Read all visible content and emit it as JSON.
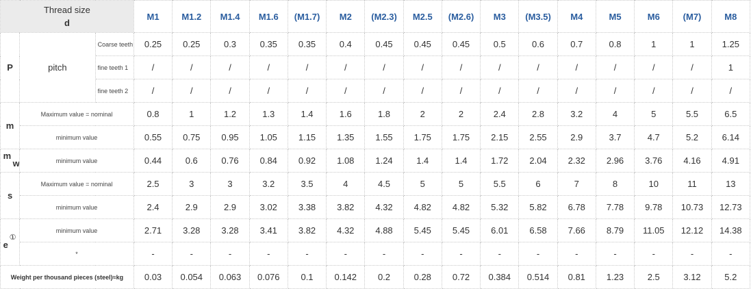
{
  "header": {
    "label_line1": "Thread size",
    "label_line2": "d",
    "sizes": [
      "M1",
      "M1.2",
      "M1.4",
      "M1.6",
      "(M1.7)",
      "M2",
      "(M2.3)",
      "M2.5",
      "(M2.6)",
      "M3",
      "(M3.5)",
      "M4",
      "M5",
      "M6",
      "(M7)",
      "M8"
    ]
  },
  "groups": {
    "P": {
      "symbol": "P",
      "name": "pitch"
    },
    "m": {
      "symbol": "m"
    },
    "mw": {
      "symbol": "m",
      "subscript": "w"
    },
    "s": {
      "symbol": "s"
    },
    "e": {
      "symbol": "e",
      "marker": "①"
    }
  },
  "rows": {
    "coarse": {
      "label": "Coarse teeth",
      "values": [
        "0.25",
        "0.25",
        "0.3",
        "0.35",
        "0.35",
        "0.4",
        "0.45",
        "0.45",
        "0.45",
        "0.5",
        "0.6",
        "0.7",
        "0.8",
        "1",
        "1",
        "1.25"
      ]
    },
    "fine1": {
      "label": "fine teeth 1",
      "values": [
        "/",
        "/",
        "/",
        "/",
        "/",
        "/",
        "/",
        "/",
        "/",
        "/",
        "/",
        "/",
        "/",
        "/",
        "/",
        "1"
      ]
    },
    "fine2": {
      "label": "fine teeth 2",
      "values": [
        "/",
        "/",
        "/",
        "/",
        "/",
        "/",
        "/",
        "/",
        "/",
        "/",
        "/",
        "/",
        "/",
        "/",
        "/",
        "/"
      ]
    },
    "m_max": {
      "label": "Maximum value = nominal",
      "values": [
        "0.8",
        "1",
        "1.2",
        "1.3",
        "1.4",
        "1.6",
        "1.8",
        "2",
        "2",
        "2.4",
        "2.8",
        "3.2",
        "4",
        "5",
        "5.5",
        "6.5"
      ]
    },
    "m_min": {
      "label": "minimum value",
      "values": [
        "0.55",
        "0.75",
        "0.95",
        "1.05",
        "1.15",
        "1.35",
        "1.55",
        "1.75",
        "1.75",
        "2.15",
        "2.55",
        "2.9",
        "3.7",
        "4.7",
        "5.2",
        "6.14"
      ]
    },
    "mw_min": {
      "label": "minimum value",
      "values": [
        "0.44",
        "0.6",
        "0.76",
        "0.84",
        "0.92",
        "1.08",
        "1.24",
        "1.4",
        "1.4",
        "1.72",
        "2.04",
        "2.32",
        "2.96",
        "3.76",
        "4.16",
        "4.91"
      ]
    },
    "s_max": {
      "label": "Maximum value = nominal",
      "values": [
        "2.5",
        "3",
        "3",
        "3.2",
        "3.5",
        "4",
        "4.5",
        "5",
        "5",
        "5.5",
        "6",
        "7",
        "8",
        "10",
        "11",
        "13"
      ]
    },
    "s_min": {
      "label": "minimum value",
      "values": [
        "2.4",
        "2.9",
        "2.9",
        "3.02",
        "3.38",
        "3.82",
        "4.32",
        "4.82",
        "4.82",
        "5.32",
        "5.82",
        "6.78",
        "7.78",
        "9.78",
        "10.73",
        "12.73"
      ]
    },
    "e_min": {
      "label": "minimum value",
      "values": [
        "2.71",
        "3.28",
        "3.28",
        "3.41",
        "3.82",
        "4.32",
        "4.88",
        "5.45",
        "5.45",
        "6.01",
        "6.58",
        "7.66",
        "8.79",
        "11.05",
        "12.12",
        "14.38"
      ]
    },
    "e_star": {
      "label": "*",
      "values": [
        "-",
        "-",
        "-",
        "-",
        "-",
        "-",
        "-",
        "-",
        "-",
        "-",
        "-",
        "-",
        "-",
        "-",
        "-",
        "-"
      ]
    },
    "weight": {
      "label": "Weight per thousand pieces (steel)≈kg",
      "values": [
        "0.03",
        "0.054",
        "0.063",
        "0.076",
        "0.1",
        "0.142",
        "0.2",
        "0.28",
        "0.72",
        "0.384",
        "0.514",
        "0.81",
        "1.23",
        "2.5",
        "3.12",
        "5.2"
      ]
    }
  }
}
